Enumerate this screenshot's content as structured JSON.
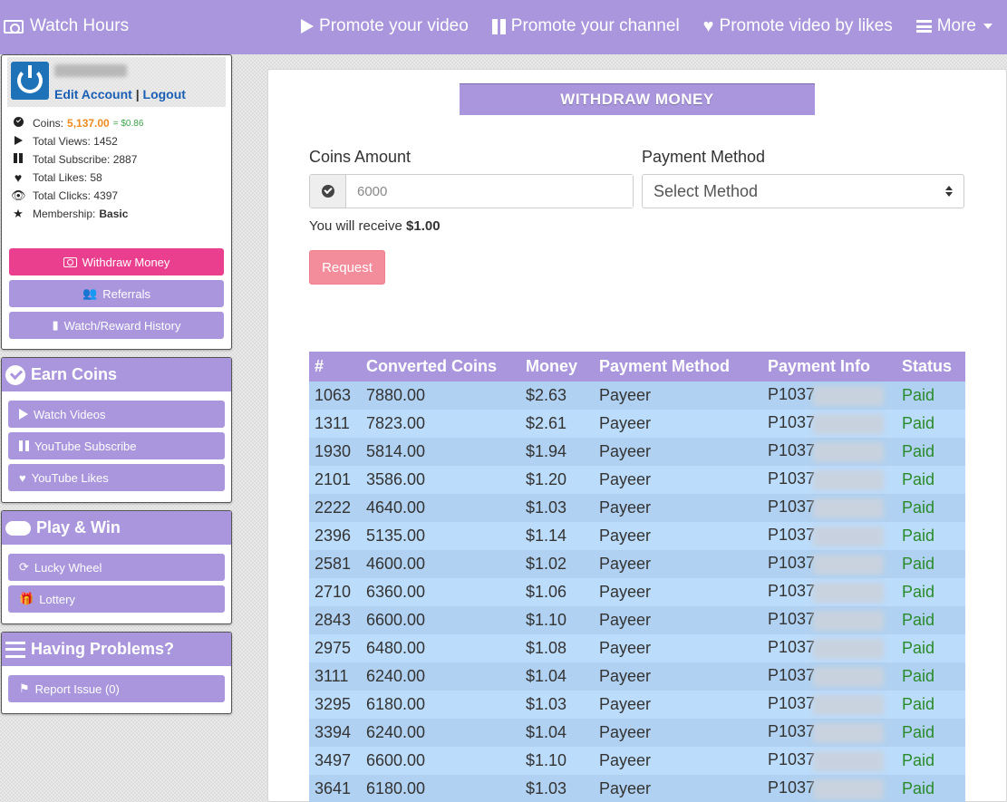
{
  "navbar": {
    "brand": "Watch Hours",
    "links": [
      {
        "label": "Promote your video",
        "icon": "play-icon"
      },
      {
        "label": "Promote your channel",
        "icon": "pause-icon"
      },
      {
        "label": "Promote video by likes",
        "icon": "heart-icon"
      },
      {
        "label": "More",
        "icon": "bars-icon"
      }
    ]
  },
  "profile": {
    "edit_account": "Edit Account",
    "separator": "|",
    "logout": "Logout",
    "stats": {
      "coins_label": "Coins:",
      "coins_value": "5,137.00",
      "coins_usd": "= $0.86",
      "views": "Total Views: 1452",
      "subscribe": "Total Subscribe: 2887",
      "likes": "Total Likes: 58",
      "clicks": "Total Clicks: 4397",
      "membership_label": "Membership:",
      "membership_value": "Basic"
    },
    "buttons": {
      "withdraw": "Withdraw Money",
      "referrals": "Referrals",
      "history": "Watch/Reward History"
    }
  },
  "earn": {
    "title": "Earn Coins",
    "items": [
      "Watch Videos",
      "YouTube Subscribe",
      "YouTube Likes"
    ]
  },
  "play": {
    "title": "Play & Win",
    "items": [
      "Lucky Wheel",
      "Lottery"
    ]
  },
  "problems": {
    "title": "Having Problems?",
    "items": [
      "Report Issue (0)"
    ]
  },
  "withdraw": {
    "title": "WITHDRAW MONEY",
    "coins_label": "Coins Amount",
    "coins_placeholder": "6000",
    "method_label": "Payment Method",
    "method_selected": "Select Method",
    "receive_prefix": "You will receive",
    "receive_amount": "$1.00",
    "request_button": "Request"
  },
  "table": {
    "headers": [
      "#",
      "Converted Coins",
      "Money",
      "Payment Method",
      "Payment Info",
      "Status"
    ],
    "rows": [
      [
        "1063",
        "7880.00",
        "$2.63",
        "Payeer",
        "P1037",
        "Paid"
      ],
      [
        "1311",
        "7823.00",
        "$2.61",
        "Payeer",
        "P1037",
        "Paid"
      ],
      [
        "1930",
        "5814.00",
        "$1.94",
        "Payeer",
        "P1037",
        "Paid"
      ],
      [
        "2101",
        "3586.00",
        "$1.20",
        "Payeer",
        "P1037",
        "Paid"
      ],
      [
        "2222",
        "4640.00",
        "$1.03",
        "Payeer",
        "P1037",
        "Paid"
      ],
      [
        "2396",
        "5135.00",
        "$1.14",
        "Payeer",
        "P1037",
        "Paid"
      ],
      [
        "2581",
        "4600.00",
        "$1.02",
        "Payeer",
        "P1037",
        "Paid"
      ],
      [
        "2710",
        "6360.00",
        "$1.06",
        "Payeer",
        "P1037",
        "Paid"
      ],
      [
        "2843",
        "6600.00",
        "$1.10",
        "Payeer",
        "P1037",
        "Paid"
      ],
      [
        "2975",
        "6480.00",
        "$1.08",
        "Payeer",
        "P1037",
        "Paid"
      ],
      [
        "3111",
        "6240.00",
        "$1.04",
        "Payeer",
        "P1037",
        "Paid"
      ],
      [
        "3295",
        "6180.00",
        "$1.03",
        "Payeer",
        "P1037",
        "Paid"
      ],
      [
        "3394",
        "6240.00",
        "$1.04",
        "Payeer",
        "P1037",
        "Paid"
      ],
      [
        "3497",
        "6600.00",
        "$1.10",
        "Payeer",
        "P1037",
        "Paid"
      ],
      [
        "3641",
        "6180.00",
        "$1.03",
        "Payeer",
        "P1037",
        "Paid"
      ]
    ]
  },
  "colors": {
    "accent": "#a996dc",
    "pink": "#ea3f8f",
    "request": "#f38d9c",
    "coins": "#f08a1c",
    "paid": "#2a8a2a"
  }
}
